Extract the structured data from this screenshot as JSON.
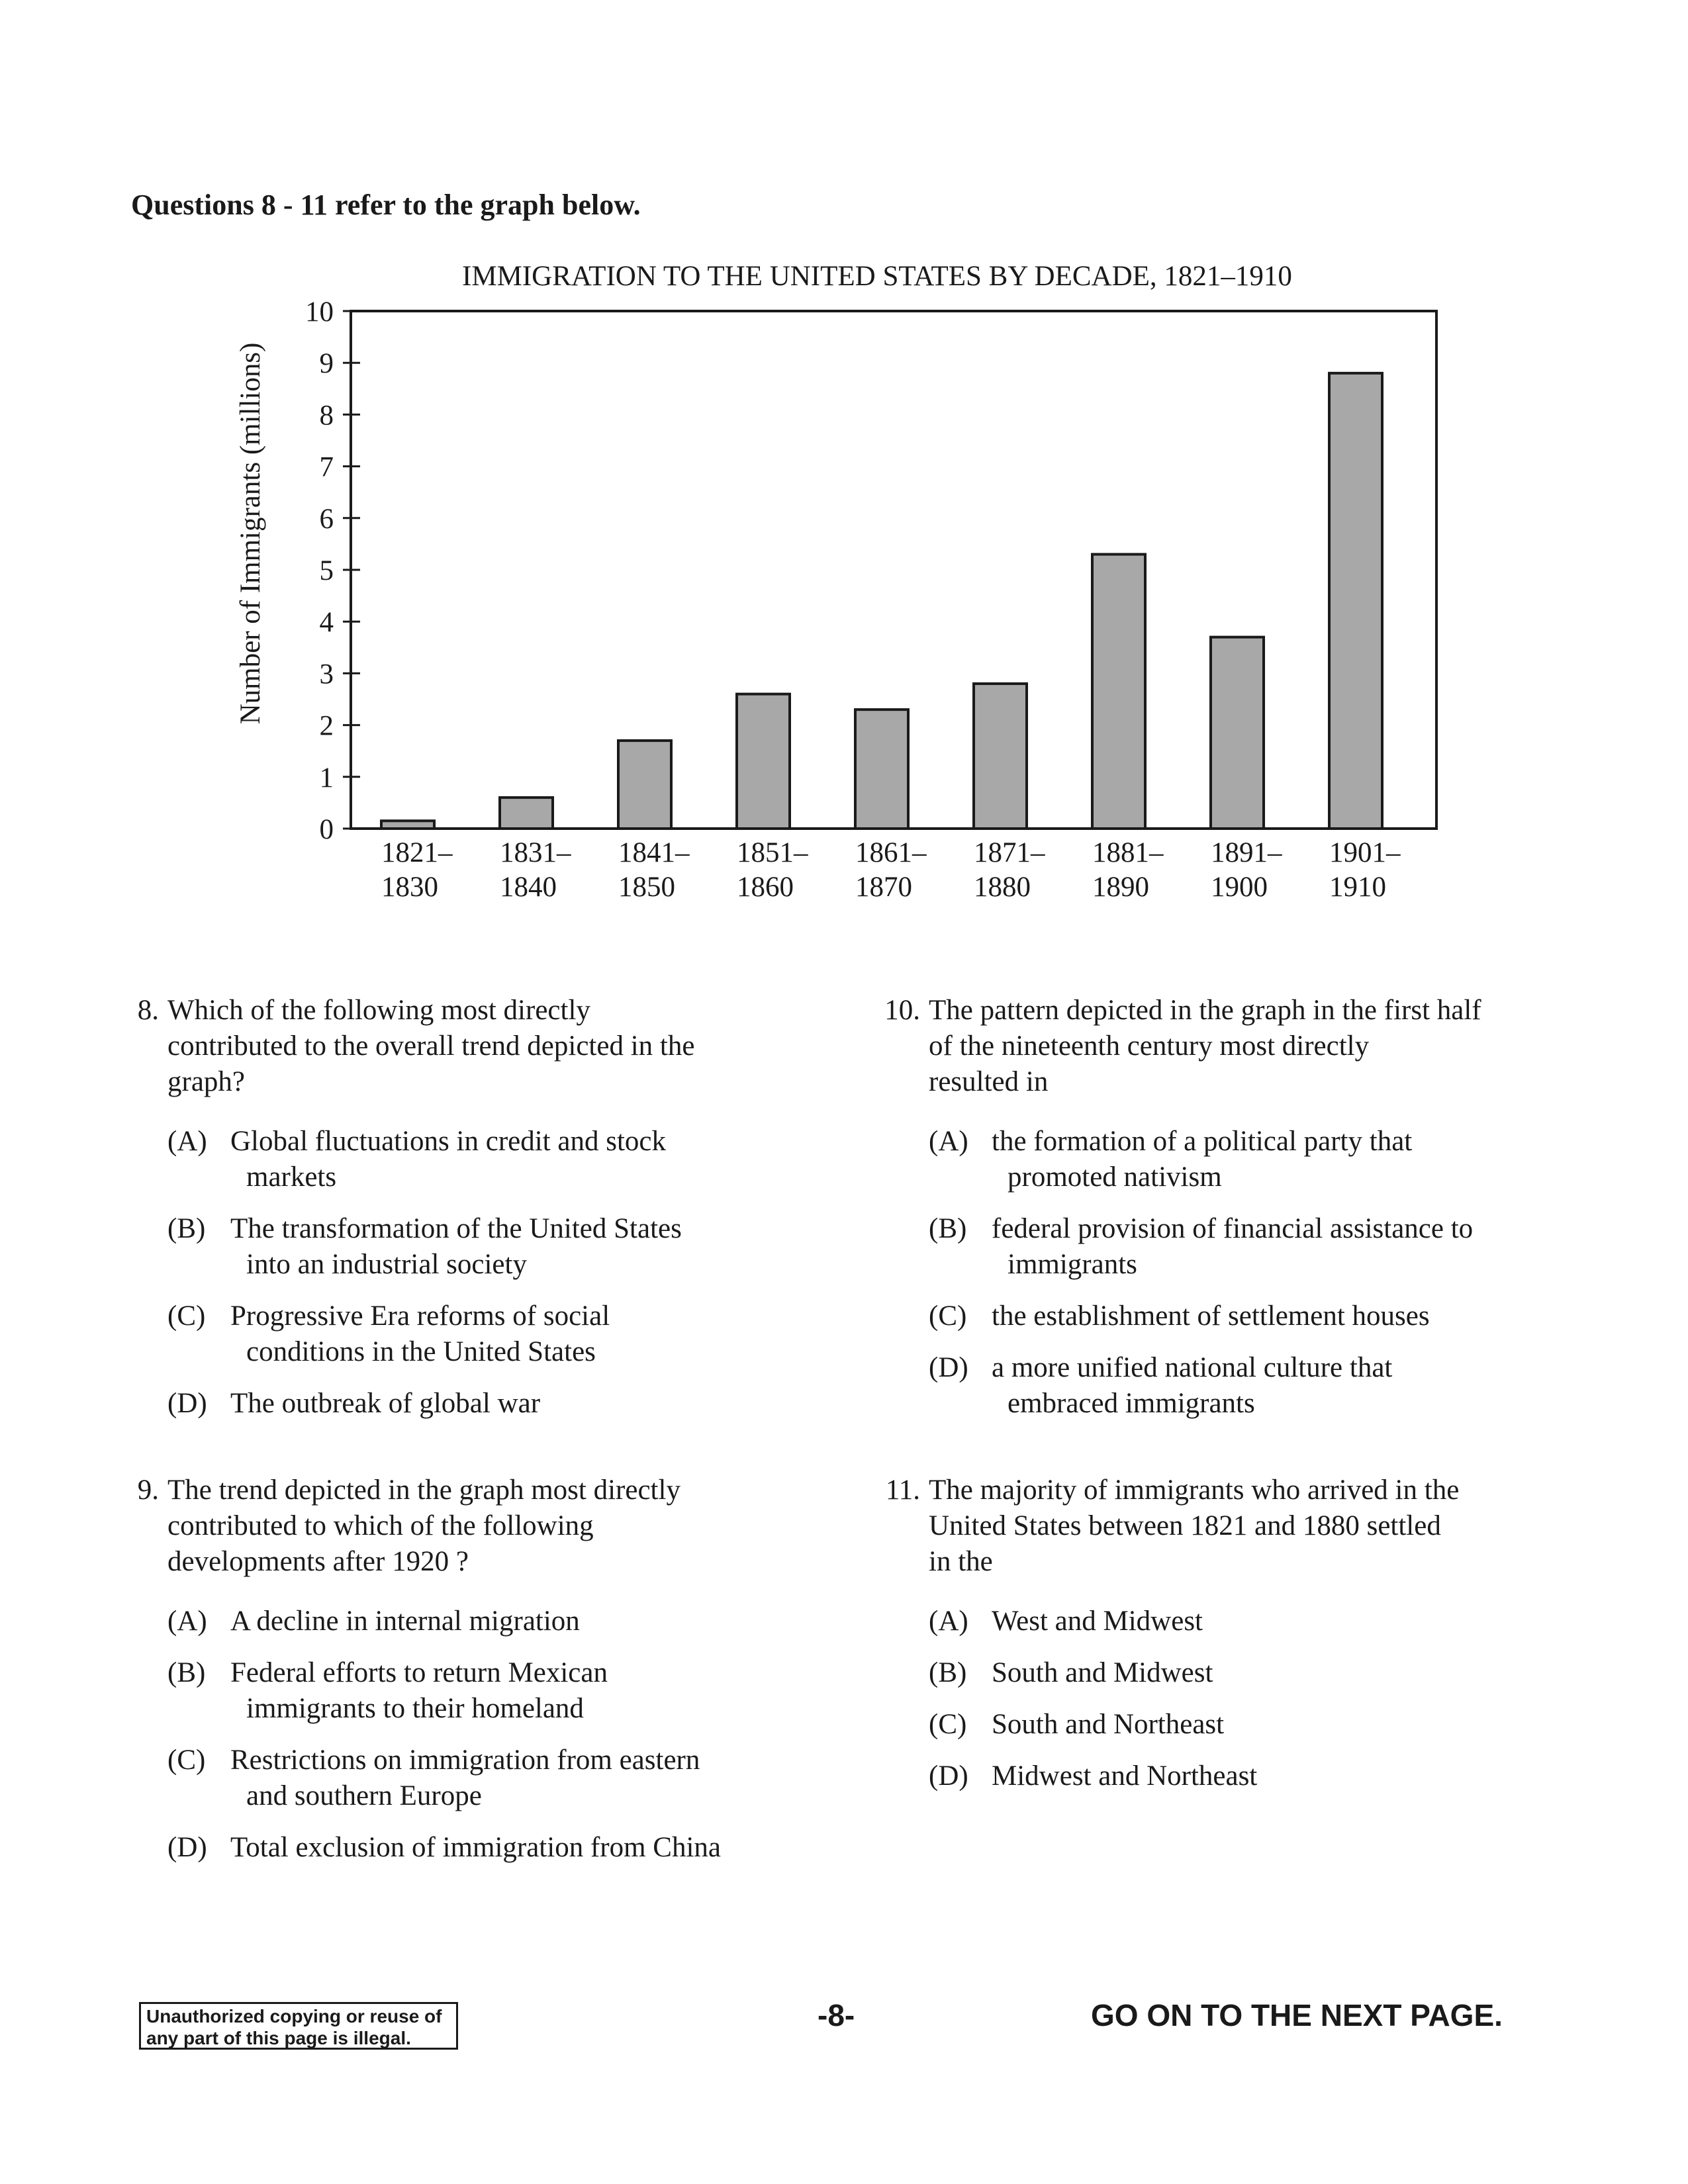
{
  "intro": "Questions 8 - 11 refer to the graph below.",
  "chart_data": {
    "type": "bar",
    "title": "IMMIGRATION TO THE UNITED STATES BY DECADE, 1821–1910",
    "ylabel": "Number of Immigrants (millions)",
    "xlabel": "",
    "categories": [
      [
        "1821–",
        "1830"
      ],
      [
        "1831–",
        "1840"
      ],
      [
        "1841–",
        "1850"
      ],
      [
        "1851–",
        "1860"
      ],
      [
        "1861–",
        "1870"
      ],
      [
        "1871–",
        "1880"
      ],
      [
        "1881–",
        "1890"
      ],
      [
        "1891–",
        "1900"
      ],
      [
        "1901–",
        "1910"
      ]
    ],
    "values": [
      0.15,
      0.6,
      1.7,
      2.6,
      2.3,
      2.8,
      5.3,
      3.7,
      8.8
    ],
    "ylim": [
      0,
      10
    ],
    "yticks": [
      "0",
      "1",
      "2",
      "3",
      "4",
      "5",
      "6",
      "7",
      "8",
      "9",
      "10"
    ],
    "bar_color": "#a8a8a8",
    "grid": false
  },
  "questions": [
    {
      "num": "8.",
      "stem": [
        "Which of the following most directly",
        "contributed to the overall trend depicted in the",
        "graph?"
      ],
      "choices": [
        {
          "letter": "(A)",
          "lines": [
            "Global fluctuations in credit and stock",
            "markets"
          ]
        },
        {
          "letter": "(B)",
          "lines": [
            "The transformation of the United States",
            "into an industrial society"
          ]
        },
        {
          "letter": "(C)",
          "lines": [
            "Progressive Era reforms of social",
            "conditions in the United States"
          ]
        },
        {
          "letter": "(D)",
          "lines": [
            "The outbreak of global war"
          ]
        }
      ]
    },
    {
      "num": "9.",
      "stem": [
        "The trend depicted in the graph most directly",
        "contributed to which of the following",
        "developments after 1920 ?"
      ],
      "choices": [
        {
          "letter": "(A)",
          "lines": [
            "A decline in internal migration"
          ]
        },
        {
          "letter": "(B)",
          "lines": [
            "Federal efforts to return Mexican",
            "immigrants to their homeland"
          ]
        },
        {
          "letter": "(C)",
          "lines": [
            "Restrictions on immigration from eastern",
            "and southern Europe"
          ]
        },
        {
          "letter": "(D)",
          "lines": [
            "Total exclusion of immigration from China"
          ]
        }
      ]
    },
    {
      "num": "10.",
      "stem": [
        "The pattern depicted in the graph in the first half",
        "of the nineteenth century most directly",
        "resulted in"
      ],
      "choices": [
        {
          "letter": "(A)",
          "lines": [
            "the formation of a political party that",
            "promoted nativism"
          ]
        },
        {
          "letter": "(B)",
          "lines": [
            "federal provision of financial assistance to",
            "immigrants"
          ]
        },
        {
          "letter": "(C)",
          "lines": [
            "the establishment of settlement houses"
          ]
        },
        {
          "letter": "(D)",
          "lines": [
            "a more unified national culture that",
            "embraced immigrants"
          ]
        }
      ]
    },
    {
      "num": "11.",
      "stem": [
        "The majority of immigrants who arrived in the",
        "United States between 1821 and 1880 settled",
        "in the"
      ],
      "choices": [
        {
          "letter": "(A)",
          "lines": [
            "West and Midwest"
          ]
        },
        {
          "letter": "(B)",
          "lines": [
            "South and Midwest"
          ]
        },
        {
          "letter": "(C)",
          "lines": [
            "South and Northeast"
          ]
        },
        {
          "letter": "(D)",
          "lines": [
            "Midwest and Northeast"
          ]
        }
      ]
    }
  ],
  "footer": {
    "notice": [
      "Unauthorized copying or reuse of",
      "any part of this page is illegal."
    ],
    "page": "-8-",
    "next": "GO ON TO THE NEXT PAGE."
  }
}
